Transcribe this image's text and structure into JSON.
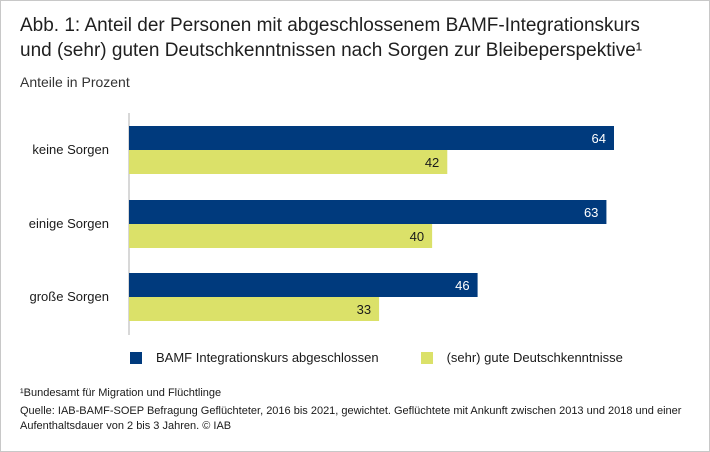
{
  "title_line1": "Abb. 1: Anteil der Personen mit abgeschlossenem BAMF-Integrationskurs",
  "title_line2": "und (sehr) guten Deutschkenntnissen nach Sorgen zur Bleibeperspektive¹",
  "subtitle": "Anteile in Prozent",
  "colors": {
    "series1": "#003a7d",
    "series2": "#dbe169"
  },
  "chart_data": {
    "type": "bar",
    "orientation": "horizontal",
    "title": "Anteil der Personen mit abgeschlossenem BAMF-Integrationskurs und (sehr) guten Deutschkenntnissen nach Sorgen zur Bleibeperspektive",
    "categories": [
      "keine Sorgen",
      "einige Sorgen",
      "große Sorgen"
    ],
    "series": [
      {
        "name": "BAMF Integrationskurs abgeschlossen",
        "values": [
          64,
          63,
          46
        ]
      },
      {
        "name": "(sehr) gute Deutschkenntnisse",
        "values": [
          42,
          40,
          33
        ]
      }
    ],
    "xlim": [
      0,
      100
    ],
    "ylabel": "",
    "xlabel": "Anteile in Prozent",
    "legend": "bottom"
  },
  "legend": {
    "item1": "BAMF Integrationskurs abgeschlossen",
    "item2": "(sehr) gute Deutschkenntnisse"
  },
  "footnote": "¹Bundesamt für Migration und Flüchtlinge",
  "source_line1": "Quelle: IAB-BAMF-SOEP Befragung Geflüchteter, 2016 bis 2021, gewichtet. Geflüchtete mit Ankunft zwischen 2013 und 2018 und einer",
  "source_line2": "Aufenthaltsdauer von 2 bis 3 Jahren.  © IAB"
}
